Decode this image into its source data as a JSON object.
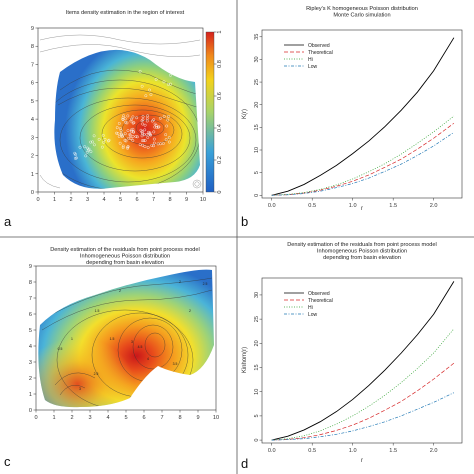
{
  "panel_letters": [
    "a",
    "b",
    "c",
    "d"
  ],
  "chart_data": [
    {
      "id": "a",
      "type": "heatmap",
      "title": "Items density estimation in the region of interest",
      "xticks": [
        0,
        1,
        2,
        3,
        4,
        5,
        6,
        7,
        8,
        9,
        10
      ],
      "yticks": [
        0,
        1,
        2,
        3,
        4,
        5,
        6,
        7,
        8,
        9
      ],
      "xlim": [
        0,
        10
      ],
      "ylim": [
        0,
        9
      ],
      "colorbar": {
        "ticks": [
          0,
          0.2,
          0.4,
          0.6,
          0.8,
          1
        ],
        "range": [
          0,
          1
        ]
      },
      "peak": {
        "x": 6.8,
        "y": 3.3,
        "value": 1.0
      },
      "colors": {
        "low": "#2a6fc9",
        "mid": "#f3e41a",
        "high": "#d5211c"
      }
    },
    {
      "id": "b",
      "type": "line",
      "title": "Ripley's K homogeneous Poisson distribution\nMonte Carlo simulation",
      "xlabel": "r",
      "ylabel": "K(r)",
      "xticks": [
        0.0,
        0.5,
        1.0,
        1.5,
        2.0
      ],
      "yticks": [
        0,
        5,
        10,
        15,
        20,
        25,
        30,
        35
      ],
      "xlim": [
        -0.12,
        2.35
      ],
      "ylim": [
        -0.6,
        36.5
      ],
      "x": [
        0,
        0.2,
        0.4,
        0.6,
        0.8,
        1.0,
        1.2,
        1.4,
        1.6,
        1.8,
        2.0,
        2.25
      ],
      "series": [
        {
          "name": "Observed",
          "color": "#000000",
          "dash": "",
          "y": [
            0,
            0.9,
            2.4,
            4.4,
            6.6,
            9.2,
            12.0,
            15.2,
            18.8,
            22.8,
            27.5,
            34.8
          ]
        },
        {
          "name": "Theoretical",
          "color": "#d62728",
          "dash": "4,2",
          "y": [
            0,
            0.13,
            0.5,
            1.13,
            2.0,
            3.1,
            4.5,
            6.2,
            8.0,
            10.2,
            12.6,
            15.9
          ]
        },
        {
          "name": "Hi",
          "color": "#2ca02c",
          "dash": "1,1.5",
          "y": [
            0,
            0.2,
            0.6,
            1.3,
            2.3,
            3.6,
            5.2,
            7.0,
            9.1,
            11.5,
            14.0,
            17.5
          ]
        },
        {
          "name": "Low",
          "color": "#1f77b4",
          "dash": "3,1.5,1,1.5",
          "y": [
            0,
            0.1,
            0.4,
            0.9,
            1.7,
            2.6,
            3.8,
            5.3,
            6.9,
            8.8,
            10.9,
            13.9
          ]
        }
      ],
      "legend": "top-left"
    },
    {
      "id": "c",
      "type": "heatmap",
      "title": "Density estimation of the residuals from point process model\nInhomogeneous Poisson distribution\ndepending from basin elevation",
      "xticks": [
        0,
        1,
        2,
        3,
        4,
        5,
        6,
        7,
        8,
        9,
        10
      ],
      "yticks": [
        0,
        1,
        2,
        3,
        4,
        5,
        6,
        7,
        8,
        9
      ],
      "xlim": [
        0,
        10
      ],
      "ylim": [
        0,
        9
      ],
      "contour_labels": [
        "2",
        "2",
        "2.5",
        "1.5",
        "1",
        "0.5",
        "1.5",
        "3",
        "4",
        "2.5",
        "3",
        "3.5",
        "4.5",
        "2"
      ],
      "colors": {
        "low": "#2a6fc9",
        "mid": "#f3e41a",
        "high": "#d5211c"
      }
    },
    {
      "id": "d",
      "type": "line",
      "title": "Density estimation of the residuals from point process model\nInhomogeneous Poisson distribution\ndepending from basin elevation",
      "xlabel": "r",
      "ylabel": "Kinhom(r)",
      "xticks": [
        0.0,
        0.5,
        1.0,
        1.5,
        2.0
      ],
      "yticks": [
        0,
        5,
        10,
        15,
        20,
        25,
        30
      ],
      "xlim": [
        -0.12,
        2.35
      ],
      "ylim": [
        -0.6,
        33.5
      ],
      "x": [
        0,
        0.2,
        0.4,
        0.6,
        0.8,
        1.0,
        1.2,
        1.4,
        1.6,
        1.8,
        2.0,
        2.25
      ],
      "series": [
        {
          "name": "Observed",
          "color": "#000000",
          "dash": "",
          "y": [
            0,
            0.8,
            2.1,
            3.8,
            5.9,
            8.4,
            11.3,
            14.5,
            18.0,
            21.8,
            26.0,
            32.8
          ]
        },
        {
          "name": "Theoretical",
          "color": "#d62728",
          "dash": "4,2",
          "y": [
            0,
            0.13,
            0.5,
            1.13,
            2.0,
            3.1,
            4.5,
            6.2,
            8.0,
            10.2,
            12.6,
            15.9
          ]
        },
        {
          "name": "Hi",
          "color": "#2ca02c",
          "dash": "1,1.5",
          "y": [
            0,
            0.3,
            0.9,
            1.9,
            3.3,
            5.0,
            7.0,
            9.3,
            11.9,
            14.8,
            18.0,
            23.0
          ]
        },
        {
          "name": "Low",
          "color": "#1f77b4",
          "dash": "3,1.5,1,1.5",
          "y": [
            0,
            0.1,
            0.3,
            0.7,
            1.2,
            1.9,
            2.8,
            3.8,
            5.0,
            6.4,
            7.8,
            9.8
          ]
        }
      ],
      "legend": "top-left"
    }
  ]
}
